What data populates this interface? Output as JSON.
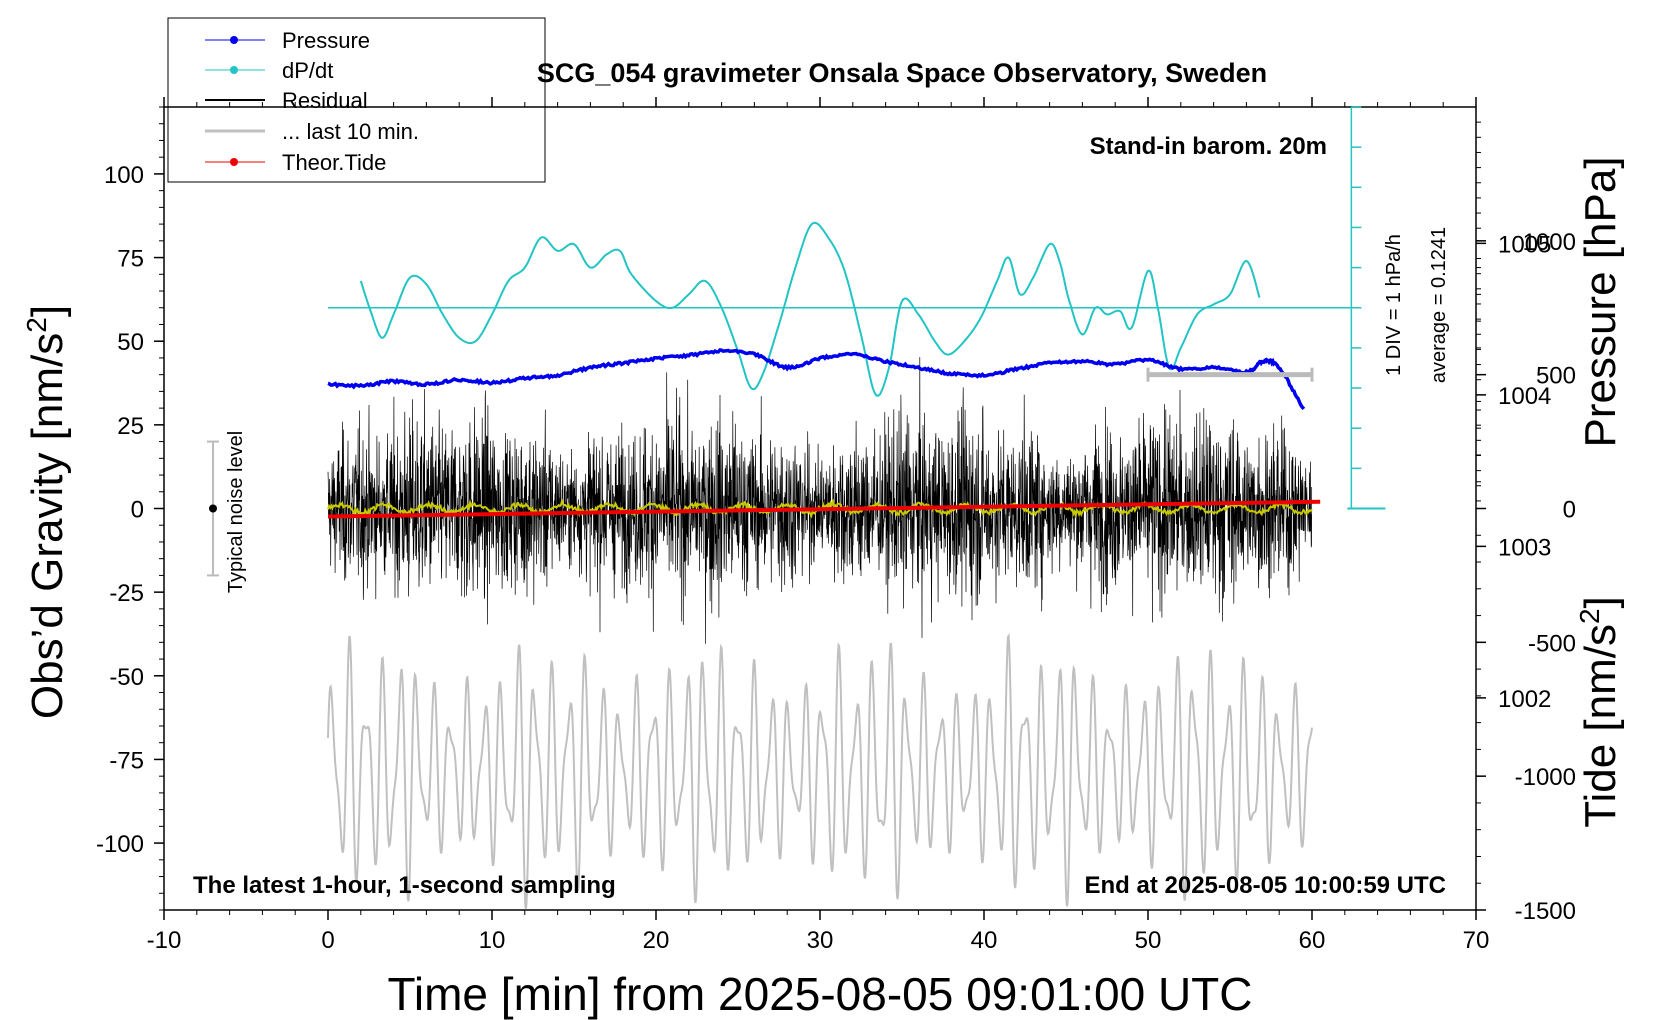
{
  "chart_data": {
    "type": "line",
    "title": "SCG_054 gravimeter Onsala Space Observatory, Sweden",
    "subtitle_right": "Stand-in barom. 20m",
    "xlabel": "Time [min] from 2025-08-05 09:01:00 UTC",
    "ylabel_left_main": "Obs’d Gravity [nm/s",
    "ylabel_left_sup": "2",
    "ylabel_left_close": "]",
    "ylabel_right_top": "Pressure [hPa]",
    "ylabel_right_bottom_main": "Tide [nm/s",
    "ylabel_right_bottom_sup": "2",
    "ylabel_right_bottom_close": "]",
    "xlim": [
      -10,
      70
    ],
    "ylim": [
      -120,
      120
    ],
    "x_ticks": [
      "-10",
      "0",
      "10",
      "20",
      "30",
      "40",
      "50",
      "60",
      "70"
    ],
    "y_ticks": [
      "-100",
      "-75",
      "-50",
      "-25",
      "0",
      "25",
      "50",
      "75",
      "100"
    ],
    "pressure_axis": {
      "range_hPa": [
        1000.6,
        1005.9
      ],
      "ticks": [
        "1002",
        "1003",
        "1004",
        "1005"
      ]
    },
    "tide_axis": {
      "range": [
        -1500,
        1500
      ],
      "ticks": [
        "-1500",
        "-1000",
        "-500",
        "0",
        "500",
        "1000"
      ]
    },
    "annotation_bottom_left": "The latest 1-hour, 1-second sampling",
    "annotation_bottom_right": "End at 2025-08-05 10:00:59 UTC",
    "noise_label": "Typical noise level",
    "noise_range": [
      -20,
      20
    ],
    "dpdt_div_label": "1 DIV = 1 hPa/h",
    "dpdt_average_label": "average = 0.1241",
    "legend": [
      {
        "label": "Pressure",
        "color": "#0000ee",
        "marker": true
      },
      {
        "label": "dP/dt",
        "color": "#22c4c4",
        "marker": true
      },
      {
        "label": "Residual",
        "color": "#000000",
        "marker": false
      },
      {
        "label": "... last 10 min.",
        "color": "#c0c0c0",
        "marker": false
      },
      {
        "label": "Theor.Tide",
        "color": "#ee0000",
        "marker": true
      }
    ],
    "series": [
      {
        "name": "Pressure",
        "axis": "pressure_hPa",
        "x": [
          0,
          2,
          4,
          6,
          8,
          10,
          12,
          14,
          16,
          18,
          20,
          22,
          24,
          26,
          28,
          30,
          32,
          34,
          36,
          38,
          40,
          42,
          44,
          46,
          48,
          50,
          52,
          54,
          56,
          57,
          58,
          59.5
        ],
        "values": [
          1004.07,
          1004.06,
          1004.09,
          1004.07,
          1004.1,
          1004.08,
          1004.11,
          1004.13,
          1004.18,
          1004.21,
          1004.24,
          1004.26,
          1004.29,
          1004.27,
          1004.18,
          1004.24,
          1004.27,
          1004.22,
          1004.18,
          1004.14,
          1004.13,
          1004.17,
          1004.21,
          1004.22,
          1004.2,
          1004.23,
          1004.17,
          1004.18,
          1004.15,
          1004.22,
          1004.18,
          1003.9
        ]
      },
      {
        "name": "dP/dt",
        "axis": "gravity_units",
        "baseline": 60,
        "x": [
          2,
          2.6,
          3.3,
          4,
          5,
          6,
          7,
          8,
          9,
          10,
          11,
          12,
          13,
          14,
          15,
          16,
          17,
          17.8,
          18.5,
          20,
          21,
          22,
          23,
          24,
          25,
          25.8,
          26.5,
          27.5,
          28.5,
          29.5,
          30.5,
          31.5,
          32.5,
          33.4,
          34.2,
          35,
          36,
          37,
          37.8,
          38.8,
          39.8,
          40.8,
          41.5,
          42.2,
          43,
          44,
          44.6,
          45.2,
          46,
          46.8,
          47.5,
          48.3,
          49,
          50,
          50.6,
          51.3,
          52,
          53,
          54,
          55,
          56,
          56.8
        ],
        "values": [
          68,
          59,
          51,
          58,
          69,
          67,
          58,
          51,
          50,
          58,
          68,
          72,
          81,
          77,
          79,
          72,
          76,
          77,
          70,
          62,
          60,
          64,
          68,
          60,
          47,
          36,
          40,
          55,
          72,
          85,
          81,
          71,
          52,
          34,
          42,
          62,
          58,
          50,
          46,
          50,
          57,
          68,
          75,
          64,
          69,
          79,
          74,
          62,
          52,
          60,
          58,
          59,
          54,
          71,
          60,
          42,
          48,
          58,
          61,
          64,
          74,
          63
        ]
      },
      {
        "name": "Residual",
        "axis": "gravity_units",
        "x_range": [
          0,
          60
        ],
        "amplitude_range": [
          -45,
          60
        ],
        "sampling": "1 s"
      },
      {
        "name": "Residual mean",
        "axis": "gravity_units",
        "x_range": [
          0,
          60
        ],
        "values_about": 0,
        "color": "#c8c800"
      },
      {
        "name": "... last 10 min.",
        "axis": "gravity_units",
        "x_range": [
          0,
          60
        ],
        "values_range": [
          -118,
          -38
        ]
      },
      {
        "name": "Theor.Tide",
        "axis": "tide_units",
        "x": [
          0,
          60.5
        ],
        "values": [
          -30,
          25
        ]
      }
    ],
    "gray_marker_x": [
      50,
      60
    ]
  }
}
